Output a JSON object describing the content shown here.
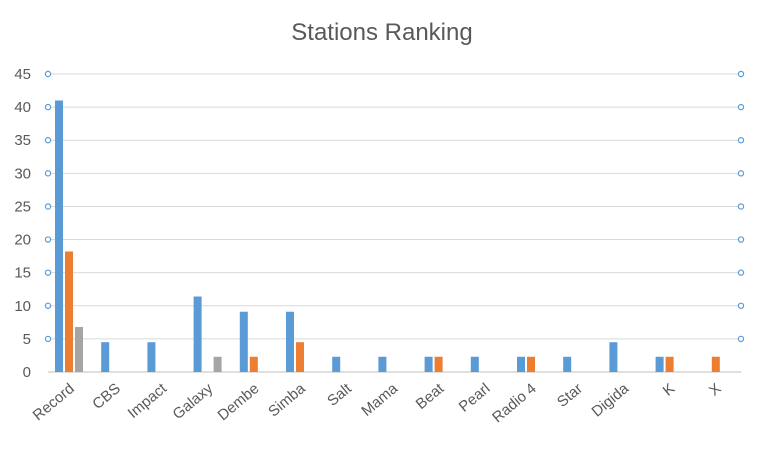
{
  "chart_data": {
    "type": "bar",
    "title": "Stations Ranking",
    "xlabel": "",
    "ylabel": "",
    "ylim": [
      0,
      45
    ],
    "yticks": [
      0,
      5,
      10,
      15,
      20,
      25,
      30,
      35,
      40,
      45
    ],
    "grid": true,
    "legend": "none",
    "categories": [
      "Record",
      "CBS",
      "Impact",
      "Galaxy",
      "Dembe",
      "Simba",
      "Salt",
      "Mama",
      "Beat",
      "Pearl",
      "Radio 4",
      "Star",
      "Digida",
      "K",
      "X"
    ],
    "series": [
      {
        "color": "#5b9bd5",
        "values": [
          41,
          4.5,
          4.5,
          11.4,
          9.1,
          9.1,
          2.3,
          2.3,
          2.3,
          2.3,
          2.3,
          2.3,
          4.5,
          2.3,
          0
        ]
      },
      {
        "color": "#ed7d31",
        "values": [
          18.2,
          0,
          0,
          0,
          2.3,
          4.5,
          0,
          0,
          2.3,
          0,
          2.3,
          0,
          0,
          2.3,
          2.3
        ]
      },
      {
        "color": "#a5a5a5",
        "values": [
          6.8,
          0,
          0,
          2.3,
          0,
          0,
          0,
          0,
          0,
          0,
          0,
          0,
          0,
          0,
          0
        ]
      }
    ]
  }
}
